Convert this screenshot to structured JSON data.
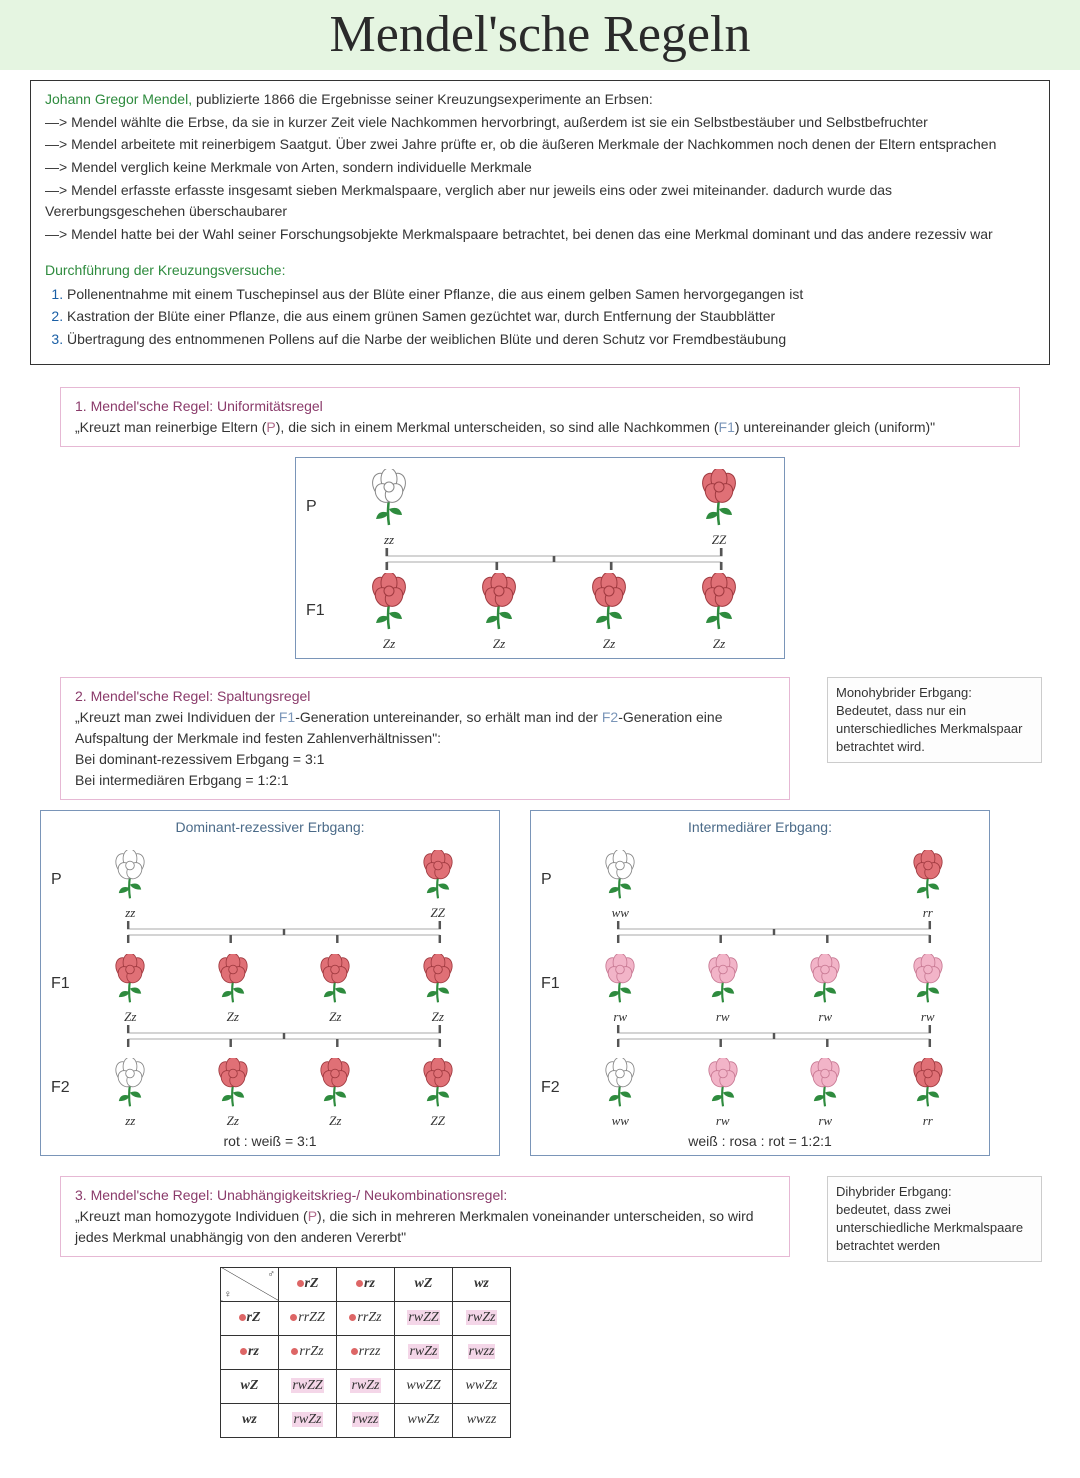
{
  "title": "Mendel'sche Regeln",
  "colors": {
    "header_band": "#e5f5e1",
    "pink_border": "#e6b8d4",
    "rule_title": "#8a3a6a",
    "green": "#2e8b3e",
    "gen_p": "#b06a8a",
    "gen_f": "#7a95b8",
    "flower_red": "#e07076",
    "flower_red_stroke": "#a03a40",
    "flower_pink": "#f2b4c8",
    "flower_pink_stroke": "#c87a94",
    "flower_white_stroke": "#888888",
    "stem": "#2e8b3e"
  },
  "intro": {
    "lead_name": "Johann Gregor Mendel,",
    "lead_rest": " publizierte 1866 die Ergebnisse seiner Kreuzungsexperimente an Erbsen:",
    "bullets": [
      "Mendel wählte die Erbse, da sie in kurzer Zeit viele Nachkommen hervorbringt, außerdem ist sie ein Selbstbestäuber und Selbstbefruchter",
      "Mendel arbeitete mit reinerbigem Saatgut. Über zwei Jahre prüfte er, ob die äußeren Merkmale der Nachkommen noch denen der Eltern entsprachen",
      "Mendel verglich keine Merkmale von Arten, sondern individuelle Merkmale",
      "Mendel erfasste erfasste insgesamt sieben Merkmalspaare, verglich aber nur jeweils eins oder zwei miteinander. dadurch wurde das Vererbungsgeschehen überschaubarer",
      "Mendel hatte bei der Wahl seiner Forschungsobjekte Merkmalspaare betrachtet, bei denen das eine Merkmal dominant und das andere rezessiv war"
    ],
    "sub_heading": "Durchführung der Kreuzungsversuche:",
    "steps": [
      "Pollenentnahme mit einem Tuschepinsel aus der Blüte einer Pflanze, die aus einem gelben Samen hervorgegangen ist",
      "Kastration der Blüte einer Pflanze, die aus einem grünen Samen gezüchtet war, durch Entfernung der Staubblätter",
      "Übertragung des entnommenen Pollens auf die Narbe der weiblichen Blüte und deren Schutz vor Fremdbestäubung"
    ]
  },
  "rule1": {
    "title": "1. Mendel'sche Regel: Uniformitätsregel",
    "text_pre": "„Kreuzt man reinerbige Eltern (",
    "p_label": "P",
    "text_mid": "), die sich in einem Merkmal unterscheiden, so sind alle Nachkommen (",
    "f1_label": "F1",
    "text_post": ") untereinander gleich (uniform)\"",
    "diagram": {
      "rows": [
        {
          "label": "P",
          "items": [
            {
              "color": "white",
              "geno": "zz"
            },
            null,
            null,
            {
              "color": "red",
              "geno": "ZZ"
            }
          ]
        },
        {
          "label": "F1",
          "items": [
            {
              "color": "red",
              "geno": "Zz"
            },
            {
              "color": "red",
              "geno": "Zz"
            },
            {
              "color": "red",
              "geno": "Zz"
            },
            {
              "color": "red",
              "geno": "Zz"
            }
          ]
        }
      ]
    }
  },
  "rule2": {
    "title": "2. Mendel'sche Regel: Spaltungsregel",
    "line1_pre": "„Kreuzt man zwei Individuen der ",
    "line1_f1": "F1",
    "line1_mid": "-Generation untereinander, so erhält man ind der ",
    "line1_f2": "F2",
    "line1_post": "-Generation eine Aufspaltung der Merkmale ind festen Zahlenverhältnissen\":",
    "line2": "Bei dominant-rezessivem Erbgang = 3:1",
    "line3": "Bei intermediären Erbgang = 1:2:1",
    "side_note": "Monohybrider Erbgang:\nBedeutet, dass nur ein unterschiedliches Merkmalspaar betrachtet wird.",
    "left": {
      "title": "Dominant-rezessiver Erbgang:",
      "rows": [
        {
          "label": "P",
          "items": [
            {
              "color": "white",
              "geno": "zz"
            },
            null,
            null,
            {
              "color": "red",
              "geno": "ZZ"
            }
          ]
        },
        {
          "label": "F1",
          "items": [
            {
              "color": "red",
              "geno": "Zz"
            },
            {
              "color": "red",
              "geno": "Zz"
            },
            {
              "color": "red",
              "geno": "Zz"
            },
            {
              "color": "red",
              "geno": "Zz"
            }
          ]
        },
        {
          "label": "F2",
          "items": [
            {
              "color": "white",
              "geno": "zz"
            },
            {
              "color": "red",
              "geno": "Zz"
            },
            {
              "color": "red",
              "geno": "Zz"
            },
            {
              "color": "red",
              "geno": "ZZ"
            }
          ]
        }
      ],
      "ratio": "rot : weiß = 3:1"
    },
    "right": {
      "title": "Intermediärer Erbgang:",
      "rows": [
        {
          "label": "P",
          "items": [
            {
              "color": "white",
              "geno": "ww"
            },
            null,
            null,
            {
              "color": "red",
              "geno": "rr"
            }
          ]
        },
        {
          "label": "F1",
          "items": [
            {
              "color": "pink",
              "geno": "rw"
            },
            {
              "color": "pink",
              "geno": "rw"
            },
            {
              "color": "pink",
              "geno": "rw"
            },
            {
              "color": "pink",
              "geno": "rw"
            }
          ]
        },
        {
          "label": "F2",
          "items": [
            {
              "color": "white",
              "geno": "ww"
            },
            {
              "color": "pink",
              "geno": "rw"
            },
            {
              "color": "pink",
              "geno": "rw"
            },
            {
              "color": "red",
              "geno": "rr"
            }
          ]
        }
      ],
      "ratio": "weiß : rosa : rot = 1:2:1"
    }
  },
  "rule3": {
    "title": "3. Mendel'sche Regel: Unabhängigkeitskrieg-/ Neukombinationsregel:",
    "text_pre": "„Kreuzt man homozygote Individuen (",
    "p_label": "P",
    "text_post": "), die sich in mehreren Merkmalen voneinander unterscheiden, so wird jedes Merkmal unabhängig von den anderen Vererbt\"",
    "side_note": "Dihybrider Erbgang:\nbedeutet, dass zwei unterschiedliche Merkmalspaare betrachtet werden",
    "punnett": {
      "male_sym": "♂",
      "female_sym": "♀",
      "col_headers": [
        "rZ",
        "rz",
        "wZ",
        "wz"
      ],
      "col_dot": [
        true,
        true,
        false,
        false
      ],
      "row_headers": [
        "rZ",
        "rz",
        "wZ",
        "wz"
      ],
      "row_dot": [
        true,
        true,
        false,
        false
      ],
      "cells": [
        [
          {
            "t": "rrZZ",
            "d": true,
            "h": false
          },
          {
            "t": "rrZz",
            "d": true,
            "h": false
          },
          {
            "t": "rwZZ",
            "d": false,
            "h": true
          },
          {
            "t": "rwZz",
            "d": false,
            "h": true
          }
        ],
        [
          {
            "t": "rrZz",
            "d": true,
            "h": false
          },
          {
            "t": "rrzz",
            "d": true,
            "h": false
          },
          {
            "t": "rwZz",
            "d": false,
            "h": true
          },
          {
            "t": "rwzz",
            "d": false,
            "h": true
          }
        ],
        [
          {
            "t": "rwZZ",
            "d": false,
            "h": true
          },
          {
            "t": "rwZz",
            "d": false,
            "h": true
          },
          {
            "t": "wwZZ",
            "d": false,
            "h": false
          },
          {
            "t": "wwZz",
            "d": false,
            "h": false
          }
        ],
        [
          {
            "t": "rwZz",
            "d": false,
            "h": true
          },
          {
            "t": "rwzz",
            "d": false,
            "h": true
          },
          {
            "t": "wwZz",
            "d": false,
            "h": false
          },
          {
            "t": "wwzz",
            "d": false,
            "h": false
          }
        ]
      ]
    }
  }
}
